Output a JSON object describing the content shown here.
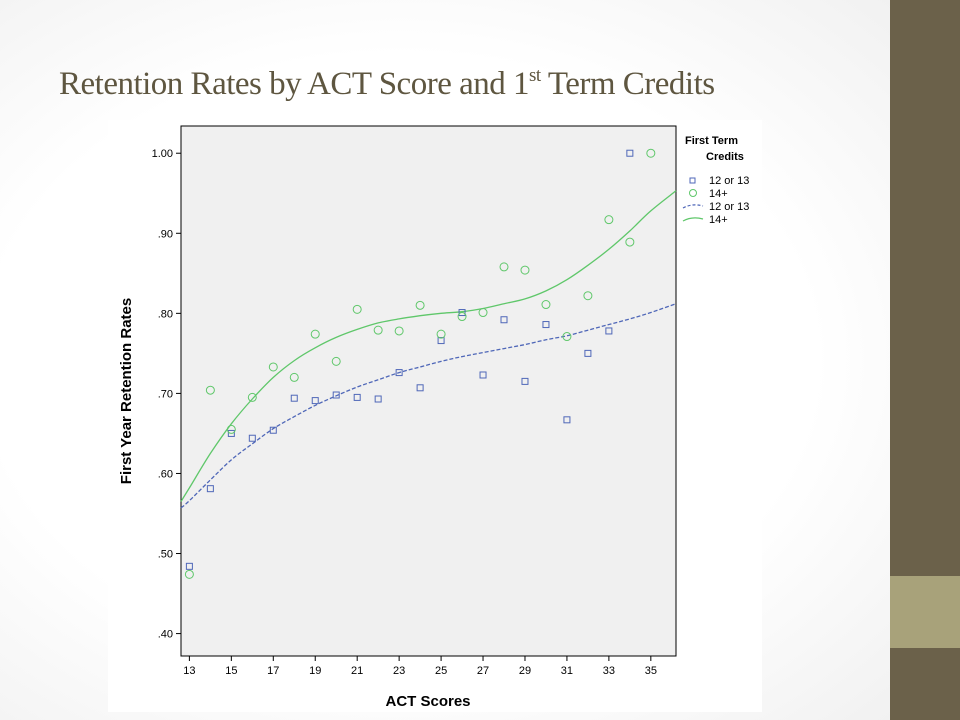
{
  "slide": {
    "title_main": "Retention Rates by ACT Score and 1",
    "title_sup": "st",
    "title_end": " Term Credits"
  },
  "colors": {
    "series_12_13": "#4f67b8",
    "series_14_plus": "#5fc76a",
    "plot_bg": "#f0f0f0",
    "sidebar_dark": "#6b614a",
    "sidebar_light": "#a8a27a",
    "title_color": "#5e5640"
  },
  "chart_data": {
    "type": "scatter",
    "title": "",
    "xlabel": "ACT Scores",
    "ylabel": "First Year Retention Rates",
    "xlim": [
      12.6,
      36.2
    ],
    "ylim": [
      0.372,
      1.034
    ],
    "xticks": [
      13,
      15,
      17,
      19,
      21,
      23,
      25,
      27,
      29,
      31,
      33,
      35
    ],
    "yticks": [
      0.4,
      0.5,
      0.6,
      0.7,
      0.8,
      0.9,
      1.0
    ],
    "ytick_labels": [
      ".40",
      ".50",
      ".60",
      ".70",
      ".80",
      ".90",
      "1.00"
    ],
    "grid": false,
    "legend": {
      "position": "right",
      "title_line1": "First Term",
      "title_line2": "Credits",
      "entries": [
        {
          "label": "12 or 13",
          "kind": "marker-square"
        },
        {
          "label": "14+",
          "kind": "marker-circle"
        },
        {
          "label": "12 or 13",
          "kind": "line-dashed"
        },
        {
          "label": "14+",
          "kind": "line-solid"
        }
      ]
    },
    "series": [
      {
        "name": "12 or 13",
        "marker": "square",
        "x": [
          13,
          14,
          15,
          16,
          17,
          18,
          19,
          20,
          21,
          22,
          23,
          24,
          25,
          26,
          27,
          28,
          29,
          30,
          31,
          32,
          33,
          34
        ],
        "y": [
          0.484,
          0.581,
          0.65,
          0.644,
          0.654,
          0.694,
          0.691,
          0.698,
          0.695,
          0.693,
          0.726,
          0.707,
          0.766,
          0.801,
          0.723,
          0.792,
          0.715,
          0.786,
          0.667,
          0.75,
          0.778,
          1.0
        ]
      },
      {
        "name": "14+",
        "marker": "circle",
        "x": [
          13,
          14,
          15,
          16,
          17,
          18,
          19,
          20,
          21,
          22,
          23,
          24,
          25,
          26,
          27,
          28,
          29,
          30,
          31,
          32,
          33,
          34,
          35
        ],
        "y": [
          0.474,
          0.704,
          0.655,
          0.695,
          0.733,
          0.72,
          0.774,
          0.74,
          0.805,
          0.779,
          0.778,
          0.81,
          0.774,
          0.796,
          0.801,
          0.858,
          0.854,
          0.811,
          0.771,
          0.822,
          0.917,
          0.889,
          1.0
        ]
      }
    ],
    "fit_lines": [
      {
        "name": "12 or 13",
        "style": "dashed",
        "x": [
          12.6,
          13,
          14,
          15,
          16,
          17,
          18,
          19,
          20,
          21,
          22,
          23,
          24,
          25,
          26,
          27,
          28,
          29,
          30,
          31,
          32,
          33,
          34,
          35,
          36.2
        ],
        "y": [
          0.557,
          0.566,
          0.592,
          0.617,
          0.637,
          0.656,
          0.671,
          0.685,
          0.697,
          0.708,
          0.717,
          0.726,
          0.733,
          0.74,
          0.746,
          0.751,
          0.756,
          0.761,
          0.767,
          0.772,
          0.779,
          0.786,
          0.793,
          0.801,
          0.812
        ]
      },
      {
        "name": "14+",
        "style": "solid",
        "x": [
          12.6,
          13,
          14,
          15,
          16,
          17,
          18,
          19,
          20,
          21,
          22,
          23,
          24,
          25,
          26,
          27,
          28,
          29,
          30,
          31,
          32,
          33,
          34,
          35,
          36.2
        ],
        "y": [
          0.565,
          0.582,
          0.625,
          0.662,
          0.693,
          0.72,
          0.741,
          0.757,
          0.77,
          0.78,
          0.788,
          0.793,
          0.797,
          0.8,
          0.802,
          0.806,
          0.812,
          0.818,
          0.828,
          0.842,
          0.86,
          0.88,
          0.903,
          0.928,
          0.953
        ]
      }
    ]
  }
}
